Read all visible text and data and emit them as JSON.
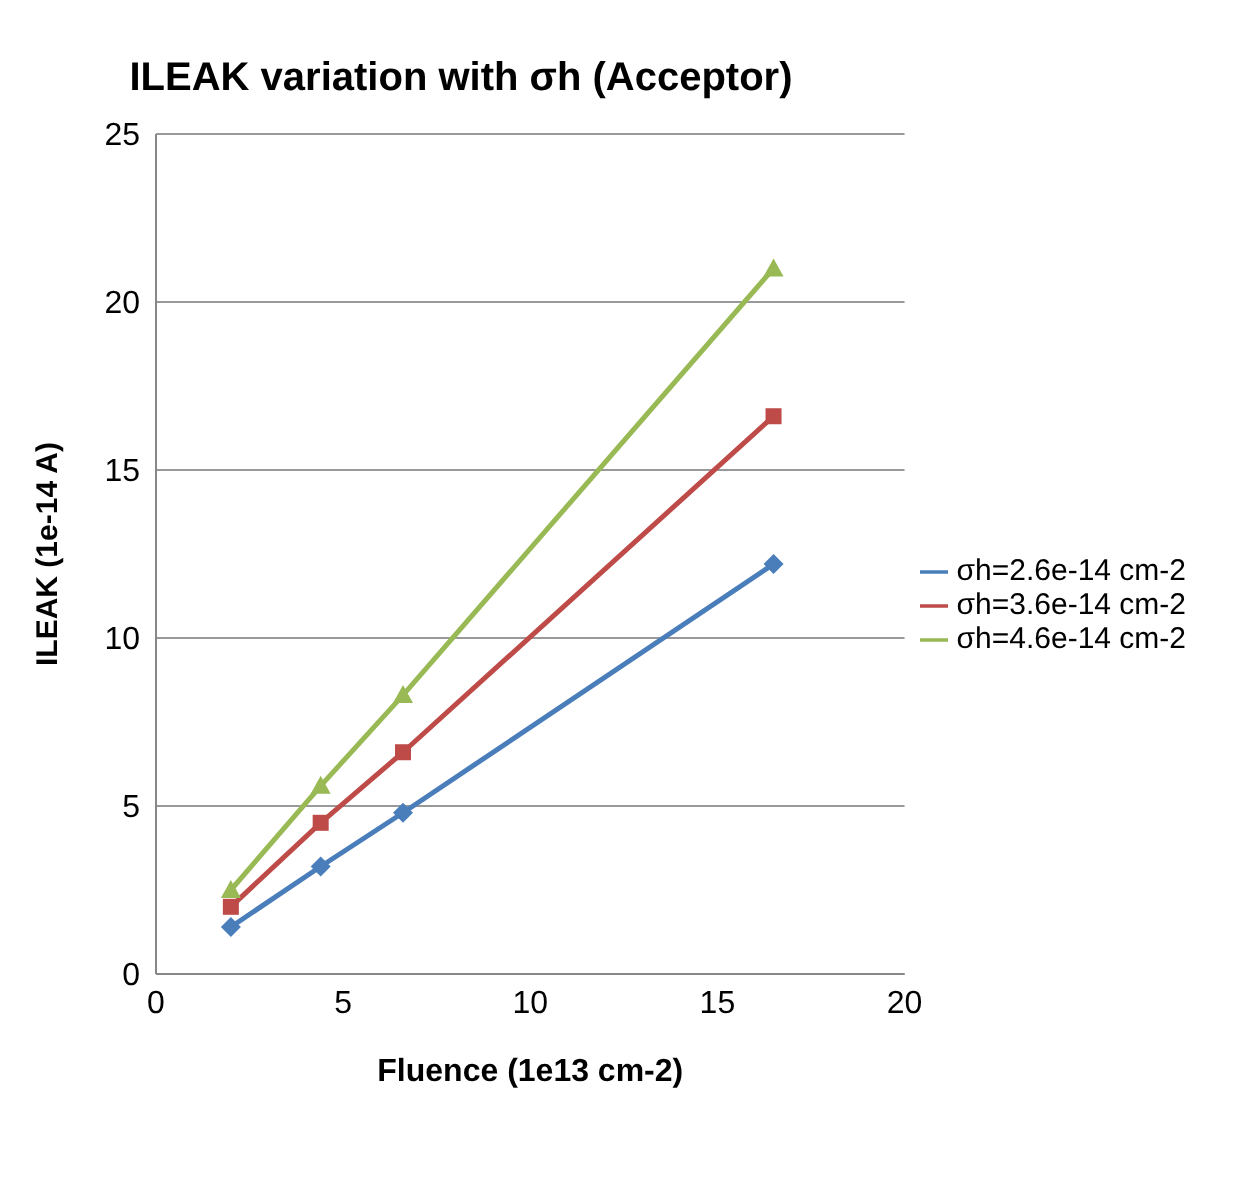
{
  "chart_data": {
    "type": "line",
    "title": "ILEAK variation with σh (Acceptor)",
    "xlabel": "Fluence (1e13 cm-2)",
    "ylabel": "ILEAK (1e-14 A)",
    "x": [
      2,
      4.4,
      6.6,
      16.5
    ],
    "series": [
      {
        "name": "σh=2.6e-14 cm-2",
        "color": "#4a7ebb",
        "marker": "diamond",
        "values": [
          1.4,
          3.2,
          4.8,
          12.2
        ]
      },
      {
        "name": "σh=3.6e-14 cm-2",
        "color": "#be4b48",
        "marker": "square",
        "values": [
          2.0,
          4.5,
          6.6,
          16.6
        ]
      },
      {
        "name": "σh=4.6e-14 cm-2",
        "color": "#98b954",
        "marker": "triangle",
        "values": [
          2.5,
          5.6,
          8.3,
          21.0
        ]
      }
    ],
    "xlim": [
      0,
      20
    ],
    "xticks": [
      0,
      5,
      10,
      15,
      20
    ],
    "ylim": [
      0,
      25
    ],
    "yticks": [
      0,
      5,
      10,
      15,
      20,
      25
    ],
    "grid": "y",
    "legend": "right",
    "line_style": "solid"
  }
}
